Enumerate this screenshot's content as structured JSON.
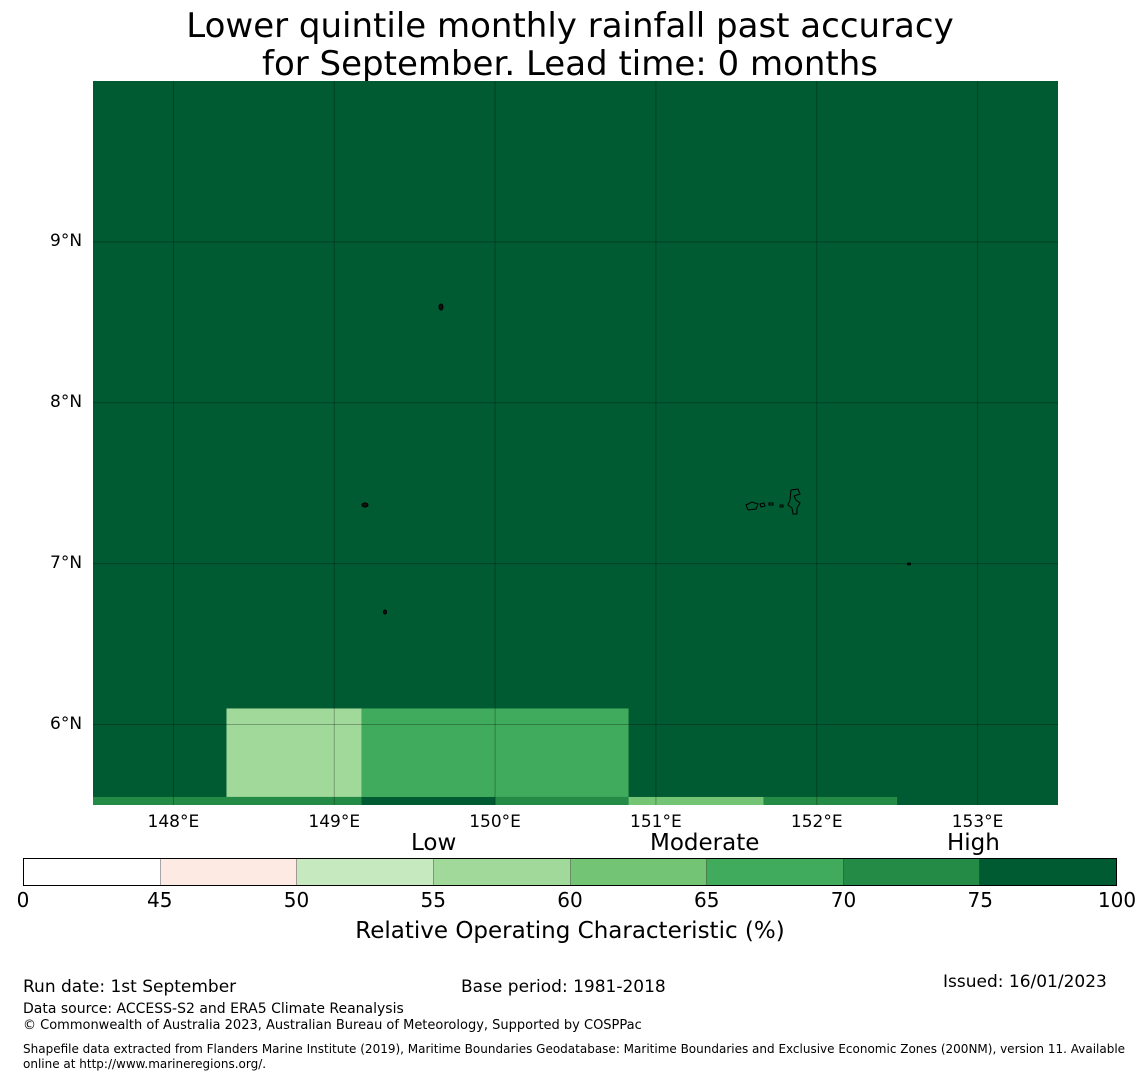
{
  "title": {
    "line1": "Lower quintile monthly rainfall past accuracy",
    "line2": "for September. Lead time: 0 months"
  },
  "map": {
    "lon_range": [
      147.5,
      153.5
    ],
    "lat_range": [
      5.5,
      10.0
    ],
    "lat_ticks": [
      {
        "value": 9,
        "label": "9°N"
      },
      {
        "value": 8,
        "label": "8°N"
      },
      {
        "value": 7,
        "label": "7°N"
      },
      {
        "value": 6,
        "label": "6°N"
      }
    ],
    "lon_ticks": [
      {
        "value": 148,
        "label": "148°E"
      },
      {
        "value": 149,
        "label": "149°E"
      },
      {
        "value": 150,
        "label": "150°E"
      },
      {
        "value": 151,
        "label": "151°E"
      },
      {
        "value": 152,
        "label": "152°E"
      },
      {
        "value": 153,
        "label": "153°E"
      }
    ],
    "background_roc_class": "75-100",
    "cells": [
      {
        "lon": [
          148.33,
          149.17
        ],
        "lat": [
          5.55,
          6.1
        ],
        "roc_class": "55-60"
      },
      {
        "lon": [
          149.17,
          150.83
        ],
        "lat": [
          5.55,
          6.1
        ],
        "roc_class": "65-70"
      },
      {
        "lon": [
          147.5,
          149.17
        ],
        "lat": [
          5.5,
          5.55
        ],
        "roc_class": "70-75"
      },
      {
        "lon": [
          150.0,
          150.83
        ],
        "lat": [
          5.5,
          5.55
        ],
        "roc_class": "70-75"
      },
      {
        "lon": [
          150.83,
          151.67
        ],
        "lat": [
          5.5,
          5.55
        ],
        "roc_class": "60-65"
      },
      {
        "lon": [
          151.67,
          152.5
        ],
        "lat": [
          5.5,
          5.55
        ],
        "roc_class": "70-75"
      }
    ]
  },
  "colorbar": {
    "categories": [
      "Low",
      "Moderate",
      "High"
    ],
    "tick_labels": [
      "0",
      "45",
      "50",
      "55",
      "60",
      "65",
      "70",
      "75",
      "100"
    ],
    "bins": [
      {
        "range": "0-45",
        "color": "#ffffff"
      },
      {
        "range": "45-50",
        "color": "#fdeae2"
      },
      {
        "range": "50-55",
        "color": "#c7e9c0"
      },
      {
        "range": "55-60",
        "color": "#a1d99b"
      },
      {
        "range": "60-65",
        "color": "#74c476"
      },
      {
        "range": "65-70",
        "color": "#41ab5d"
      },
      {
        "range": "70-75",
        "color": "#238b45"
      },
      {
        "range": "75-100",
        "color": "#005a32"
      }
    ],
    "label": "Relative Operating Characteristic (%)"
  },
  "footer": {
    "run_date": "Run date: 1st September",
    "base_period": "Base period: 1981-2018",
    "issued": "Issued: 16/01/2023",
    "data_source": "Data source: ACCESS-S2 and ERA5 Climate Reanalysis",
    "copyright": "© Commonwealth of Australia 2023, Australian Bureau of Meteorology, Supported by COSPPac",
    "shapefile": "Shapefile data extracted from Flanders Marine Institute (2019), Maritime Boundaries Geodatabase: Maritime Boundaries and Exclusive Economic Zones (200NM), version 11. Available online at http://www.marineregions.org/."
  }
}
